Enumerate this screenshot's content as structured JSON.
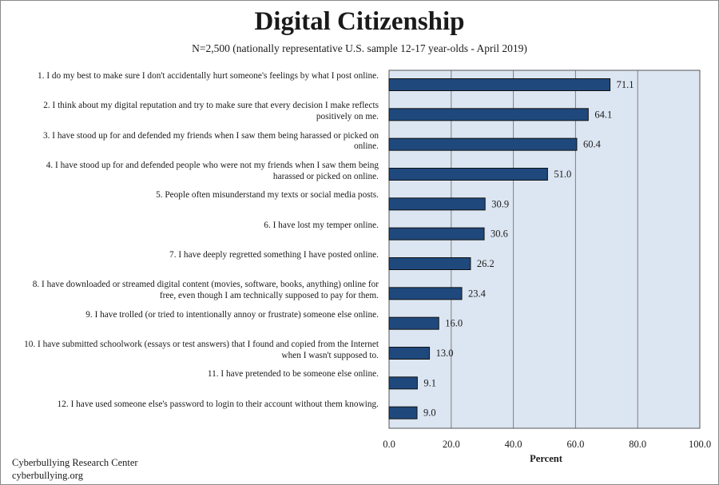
{
  "chart_data": {
    "type": "bar",
    "orientation": "horizontal",
    "title": "Digital Citizenship",
    "subtitle": "N=2,500 (nationally representative U.S. sample 12-17 year-olds - April 2019)",
    "categories": [
      "1. I do my best to make sure I don't accidentally hurt someone's feelings by what I post online.",
      "2. I think about my digital reputation and try to make sure that every decision I make reflects positively on me.",
      "3. I have stood up for and defended my friends when I saw them being harassed or picked on online.",
      "4. I have stood up for and defended people who were not my friends when I saw them being harassed or picked on online.",
      "5. People often misunderstand my texts or social media posts.",
      "6. I have lost my temper online.",
      "7. I have deeply regretted something I have posted online.",
      "8. I have downloaded or streamed digital content (movies, software, books, anything) online for free, even though I am technically supposed to pay for them.",
      "9. I have trolled (or tried to intentionally annoy or frustrate) someone else online.",
      "10. I have submitted schoolwork (essays or test answers) that I found and copied from the Internet when I wasn't supposed to.",
      "11. I have pretended to be someone else online.",
      "12. I have used someone else's password to login to their account without them knowing."
    ],
    "values": [
      71.1,
      64.1,
      60.4,
      51.0,
      30.9,
      30.6,
      26.2,
      23.4,
      16.0,
      13.0,
      9.1,
      9.0
    ],
    "value_labels": [
      "71.1",
      "64.1",
      "60.4",
      "51.0",
      "30.9",
      "30.6",
      "26.2",
      "23.4",
      "16.0",
      "13.0",
      "9.1",
      "9.0"
    ],
    "xlabel": "Percent",
    "xlim": [
      0,
      100
    ],
    "xticks": [
      "0.0",
      "20.0",
      "40.0",
      "60.0",
      "80.0",
      "100.0"
    ],
    "grid": true,
    "colors": {
      "bar": "#1f497d",
      "plot_bg": "#dce6f2",
      "grid": "#7f7f7f"
    }
  },
  "footer": {
    "org": "Cyberbullying Research Center",
    "url": "cyberbullying.org"
  }
}
